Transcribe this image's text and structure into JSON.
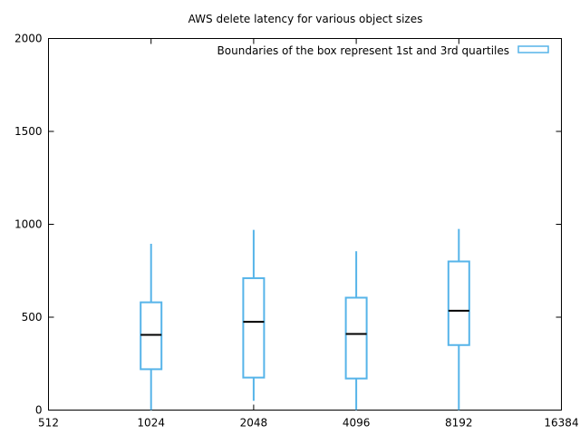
{
  "chart_data": {
    "type": "boxplot",
    "title": "AWS delete latency for various object sizes",
    "xlabel": "",
    "ylabel": "",
    "x_scale": "log2",
    "xlim": [
      512,
      16384
    ],
    "ylim": [
      0,
      2000
    ],
    "x_ticks": [
      "512",
      "1024",
      "2048",
      "4096",
      "8192",
      "16384"
    ],
    "y_ticks": [
      "0",
      "500",
      "1000",
      "1500",
      "2000"
    ],
    "grid": false,
    "legend_position": "top-right",
    "series": [
      {
        "name": "Boundaries of the box represent 1st and 3rd quartiles",
        "color": "#56b4e9",
        "median_color": "#000000",
        "boxes": [
          {
            "x": 1024,
            "min": 0,
            "q1": 220,
            "median": 405,
            "q3": 580,
            "max": 895
          },
          {
            "x": 2048,
            "min": 50,
            "q1": 175,
            "median": 475,
            "q3": 710,
            "max": 970
          },
          {
            "x": 4096,
            "min": 0,
            "q1": 170,
            "median": 410,
            "q3": 605,
            "max": 855
          },
          {
            "x": 8192,
            "min": 0,
            "q1": 350,
            "median": 535,
            "q3": 800,
            "max": 975
          }
        ]
      }
    ]
  }
}
